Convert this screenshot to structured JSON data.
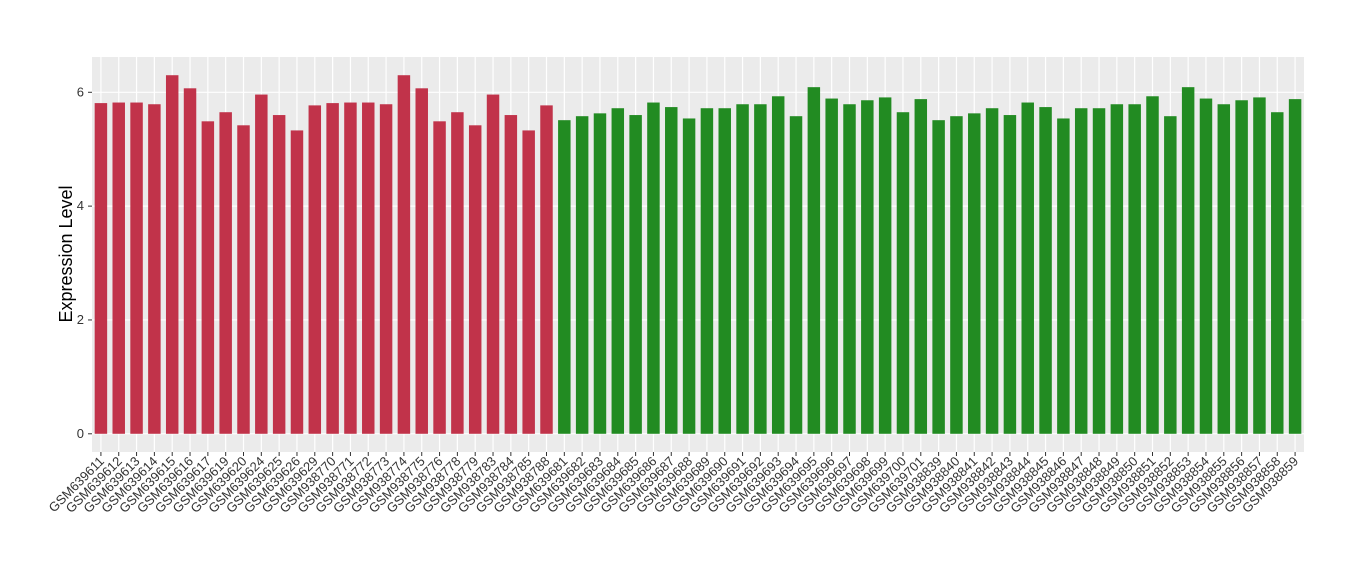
{
  "chart_data": {
    "type": "bar",
    "y_label": "Expression Level",
    "categories": [
      "GSM639611",
      "GSM639612",
      "GSM639613",
      "GSM639614",
      "GSM639615",
      "GSM639616",
      "GSM639617",
      "GSM639619",
      "GSM639620",
      "GSM639624",
      "GSM639625",
      "GSM639626",
      "GSM639629",
      "GSM938770",
      "GSM938771",
      "GSM938772",
      "GSM938773",
      "GSM938774",
      "GSM938775",
      "GSM938776",
      "GSM938778",
      "GSM938779",
      "GSM938783",
      "GSM938784",
      "GSM938785",
      "GSM938788",
      "GSM639681",
      "GSM639682",
      "GSM639683",
      "GSM639684",
      "GSM639685",
      "GSM639686",
      "GSM639687",
      "GSM639688",
      "GSM639689",
      "GSM639690",
      "GSM639691",
      "GSM639692",
      "GSM639693",
      "GSM639694",
      "GSM639695",
      "GSM639696",
      "GSM639697",
      "GSM639698",
      "GSM639699",
      "GSM639700",
      "GSM639701",
      "GSM938839",
      "GSM938840",
      "GSM938841",
      "GSM938842",
      "GSM938843",
      "GSM938844",
      "GSM938845",
      "GSM938846",
      "GSM938847",
      "GSM938848",
      "GSM938849",
      "GSM938850",
      "GSM938851",
      "GSM938852",
      "GSM938853",
      "GSM938854",
      "GSM938855",
      "GSM938856",
      "GSM938857",
      "GSM938858",
      "GSM938859"
    ],
    "values": [
      5.81,
      5.82,
      5.82,
      5.79,
      6.3,
      6.07,
      5.49,
      5.65,
      5.42,
      5.96,
      5.6,
      5.33,
      5.77,
      5.81,
      5.82,
      5.82,
      5.79,
      6.3,
      6.07,
      5.49,
      5.65,
      5.42,
      5.96,
      5.6,
      5.33,
      5.77,
      5.51,
      5.58,
      5.63,
      5.72,
      5.6,
      5.82,
      5.74,
      5.54,
      5.72,
      5.72,
      5.79,
      5.79,
      5.93,
      5.58,
      6.09,
      5.89,
      5.79,
      5.86,
      5.91,
      5.65,
      5.88,
      5.51,
      5.58,
      5.63,
      5.72,
      5.6,
      5.82,
      5.74,
      5.54,
      5.72,
      5.72,
      5.79,
      5.79,
      5.93,
      5.58,
      6.09,
      5.89,
      5.79,
      5.86,
      5.91,
      5.65,
      5.88
    ],
    "colors": [
      "#c1334a",
      "#c1334a",
      "#c1334a",
      "#c1334a",
      "#c1334a",
      "#c1334a",
      "#c1334a",
      "#c1334a",
      "#c1334a",
      "#c1334a",
      "#c1334a",
      "#c1334a",
      "#c1334a",
      "#c1334a",
      "#c1334a",
      "#c1334a",
      "#c1334a",
      "#c1334a",
      "#c1334a",
      "#c1334a",
      "#c1334a",
      "#c1334a",
      "#c1334a",
      "#c1334a",
      "#c1334a",
      "#c1334a",
      "#228b22",
      "#228b22",
      "#228b22",
      "#228b22",
      "#228b22",
      "#228b22",
      "#228b22",
      "#228b22",
      "#228b22",
      "#228b22",
      "#228b22",
      "#228b22",
      "#228b22",
      "#228b22",
      "#228b22",
      "#228b22",
      "#228b22",
      "#228b22",
      "#228b22",
      "#228b22",
      "#228b22",
      "#228b22",
      "#228b22",
      "#228b22",
      "#228b22",
      "#228b22",
      "#228b22",
      "#228b22",
      "#228b22",
      "#228b22",
      "#228b22",
      "#228b22",
      "#228b22",
      "#228b22",
      "#228b22",
      "#228b22",
      "#228b22",
      "#228b22",
      "#228b22",
      "#228b22",
      "#228b22",
      "#228b22"
    ],
    "ylim": [
      -0.32,
      6.62
    ],
    "yticks": [
      0,
      2,
      4,
      6
    ],
    "grid": true
  }
}
